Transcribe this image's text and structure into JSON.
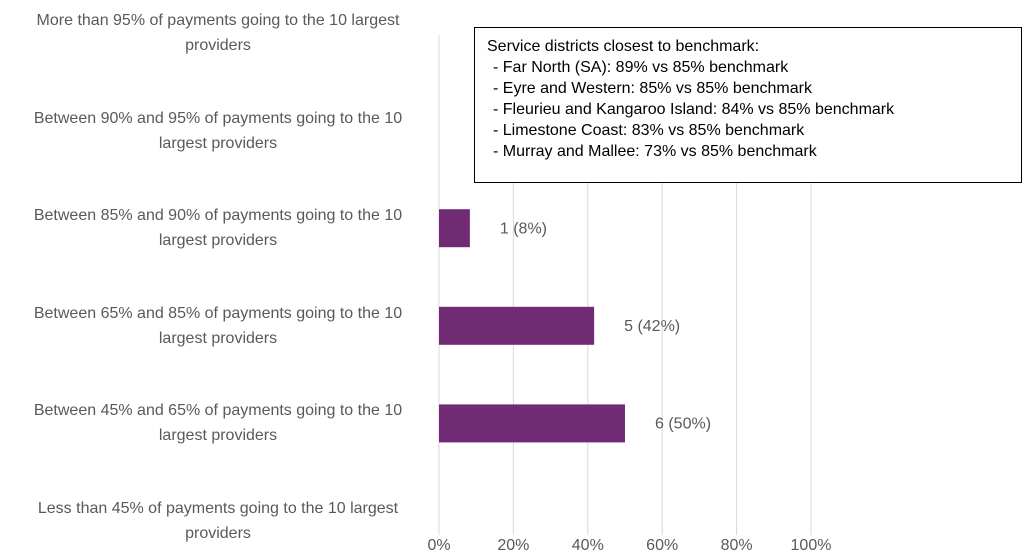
{
  "chart_data": {
    "type": "barh",
    "categories": [
      "More than 95% of payments going to the 10 largest providers",
      "Between 90% and 95% of payments going to the 10 largest providers",
      "Between 85% and 90% of payments going to the 10 largest providers",
      "Between 65% and 85% of payments going to the 10 largest providers",
      "Between 45% and 65% of payments going to the 10 largest providers",
      "Less than 45% of payments going to the 10 largest providers"
    ],
    "values": [
      0,
      0,
      8.3,
      41.7,
      50,
      0
    ],
    "value_labels": [
      null,
      null,
      "1 (8%)",
      "5 (42%)",
      "6 (50%)",
      null
    ],
    "color": "#702b74",
    "xlim": [
      0,
      100
    ],
    "xticks": [
      {
        "value": 0,
        "label": "0%"
      },
      {
        "value": 20,
        "label": "20%"
      },
      {
        "value": 40,
        "label": "40%"
      },
      {
        "value": 60,
        "label": "60%"
      },
      {
        "value": 80,
        "label": "80%"
      },
      {
        "value": 100,
        "label": "100%"
      }
    ],
    "grid": true,
    "annotation": {
      "title": "Service districts closest to benchmark:",
      "lines": [
        "- Far North (SA): 89% vs 85% benchmark",
        "- Eyre and Western: 85% vs 85% benchmark",
        "- Fleurieu and Kangaroo Island: 84% vs 85% benchmark",
        "- Limestone Coast: 83% vs 85% benchmark",
        "- Murray and Mallee: 73% vs 85% benchmark"
      ]
    }
  }
}
